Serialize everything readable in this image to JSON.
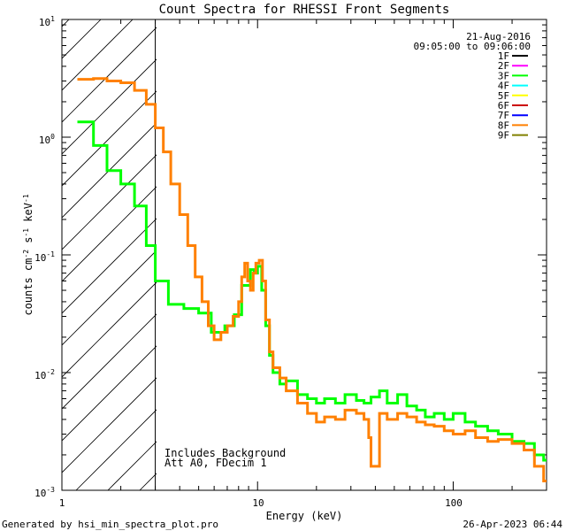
{
  "chart_data": {
    "type": "line",
    "title": "Count Spectra for RHESSI Front Segments",
    "date": "21-Aug-2016",
    "time_range": "09:05:00 to 09:06:00",
    "xlabel": "Energy (keV)",
    "ylabel": "counts cm^-2 s^-1 keV^-1",
    "xscale": "log",
    "yscale": "log",
    "xlim": [
      1,
      300
    ],
    "ylim": [
      0.001,
      10
    ],
    "x_tick_labels": [
      "1",
      "10",
      "100"
    ],
    "y_tick_labels": [
      {
        "base": "10",
        "exp": "1"
      },
      {
        "base": "10",
        "exp": "0"
      },
      {
        "base": "10",
        "exp": "-1"
      },
      {
        "base": "10",
        "exp": "-2"
      },
      {
        "base": "10",
        "exp": "-3"
      }
    ],
    "legend_position": "top-right",
    "legend": [
      {
        "name": "1F",
        "color": "#000000"
      },
      {
        "name": "2F",
        "color": "#ff00ff"
      },
      {
        "name": "3F",
        "color": "#00ff00"
      },
      {
        "name": "4F",
        "color": "#00ffff"
      },
      {
        "name": "5F",
        "color": "#ffff00"
      },
      {
        "name": "6F",
        "color": "#cc0000"
      },
      {
        "name": "7F",
        "color": "#0000ff"
      },
      {
        "name": "8F",
        "color": "#ff8000"
      },
      {
        "name": "9F",
        "color": "#808000"
      }
    ],
    "excluded_region": {
      "energy_max": 3.0
    },
    "annotations": [
      "Includes Background",
      "Att A0, FDecim 1"
    ],
    "series": [
      {
        "name": "3F",
        "color": "#00ff00",
        "x": [
          1.2,
          1.45,
          1.7,
          2.0,
          2.35,
          2.7,
          3.0,
          3.5,
          4.2,
          5.0,
          5.8,
          6.8,
          7.6,
          8.3,
          8.8,
          9.2,
          9.6,
          10.0,
          10.5,
          11.0,
          11.5,
          12.0,
          13.0,
          14.0,
          16.0,
          18.0,
          20.0,
          22.0,
          25.0,
          28.0,
          32.0,
          35.0,
          38.0,
          42.0,
          46.0,
          52.0,
          58.0,
          65.0,
          72.0,
          80.0,
          90.0,
          100.0,
          115.0,
          130.0,
          150.0,
          170.0,
          200.0,
          230.0,
          260.0,
          290.0
        ],
        "y": [
          1.35,
          0.85,
          0.52,
          0.4,
          0.26,
          0.12,
          0.06,
          0.038,
          0.035,
          0.032,
          0.022,
          0.025,
          0.031,
          0.055,
          0.055,
          0.075,
          0.07,
          0.08,
          0.05,
          0.025,
          0.014,
          0.01,
          0.008,
          0.0085,
          0.0065,
          0.006,
          0.0055,
          0.006,
          0.0055,
          0.0065,
          0.0058,
          0.0055,
          0.0062,
          0.007,
          0.0055,
          0.0065,
          0.0052,
          0.0048,
          0.0042,
          0.0045,
          0.004,
          0.0045,
          0.0038,
          0.0035,
          0.0032,
          0.003,
          0.0026,
          0.0025,
          0.002,
          0.0018
        ]
      },
      {
        "name": "8F",
        "color": "#ff8000",
        "x": [
          1.2,
          1.45,
          1.7,
          2.0,
          2.35,
          2.7,
          3.0,
          3.3,
          3.6,
          4.0,
          4.4,
          4.8,
          5.2,
          5.6,
          6.0,
          6.5,
          7.0,
          7.5,
          8.0,
          8.3,
          8.6,
          8.9,
          9.2,
          9.5,
          9.8,
          10.2,
          10.6,
          11.0,
          11.5,
          12.0,
          13.0,
          14.0,
          16.0,
          18.0,
          20.0,
          22.0,
          25.0,
          28.0,
          32.0,
          35.0,
          37.0,
          38.0,
          42.0,
          46.0,
          52.0,
          58.0,
          65.0,
          72.0,
          80.0,
          90.0,
          100.0,
          115.0,
          130.0,
          150.0,
          170.0,
          200.0,
          230.0,
          260.0,
          290.0
        ],
        "y": [
          3.1,
          3.15,
          3.0,
          2.9,
          2.5,
          1.9,
          1.2,
          0.75,
          0.4,
          0.22,
          0.12,
          0.065,
          0.04,
          0.025,
          0.019,
          0.022,
          0.025,
          0.03,
          0.04,
          0.065,
          0.085,
          0.06,
          0.05,
          0.07,
          0.085,
          0.09,
          0.06,
          0.028,
          0.015,
          0.011,
          0.009,
          0.007,
          0.0055,
          0.0045,
          0.0038,
          0.0042,
          0.004,
          0.0048,
          0.0045,
          0.004,
          0.0028,
          0.0016,
          0.0045,
          0.004,
          0.0045,
          0.0042,
          0.0038,
          0.0036,
          0.0035,
          0.0032,
          0.003,
          0.0032,
          0.0028,
          0.0026,
          0.0027,
          0.0025,
          0.0022,
          0.0016,
          0.0012
        ]
      }
    ]
  },
  "footer": {
    "generated_by": "Generated by hsi_min_spectra_plot.pro",
    "render_date": "26-Apr-2023 06:44"
  }
}
